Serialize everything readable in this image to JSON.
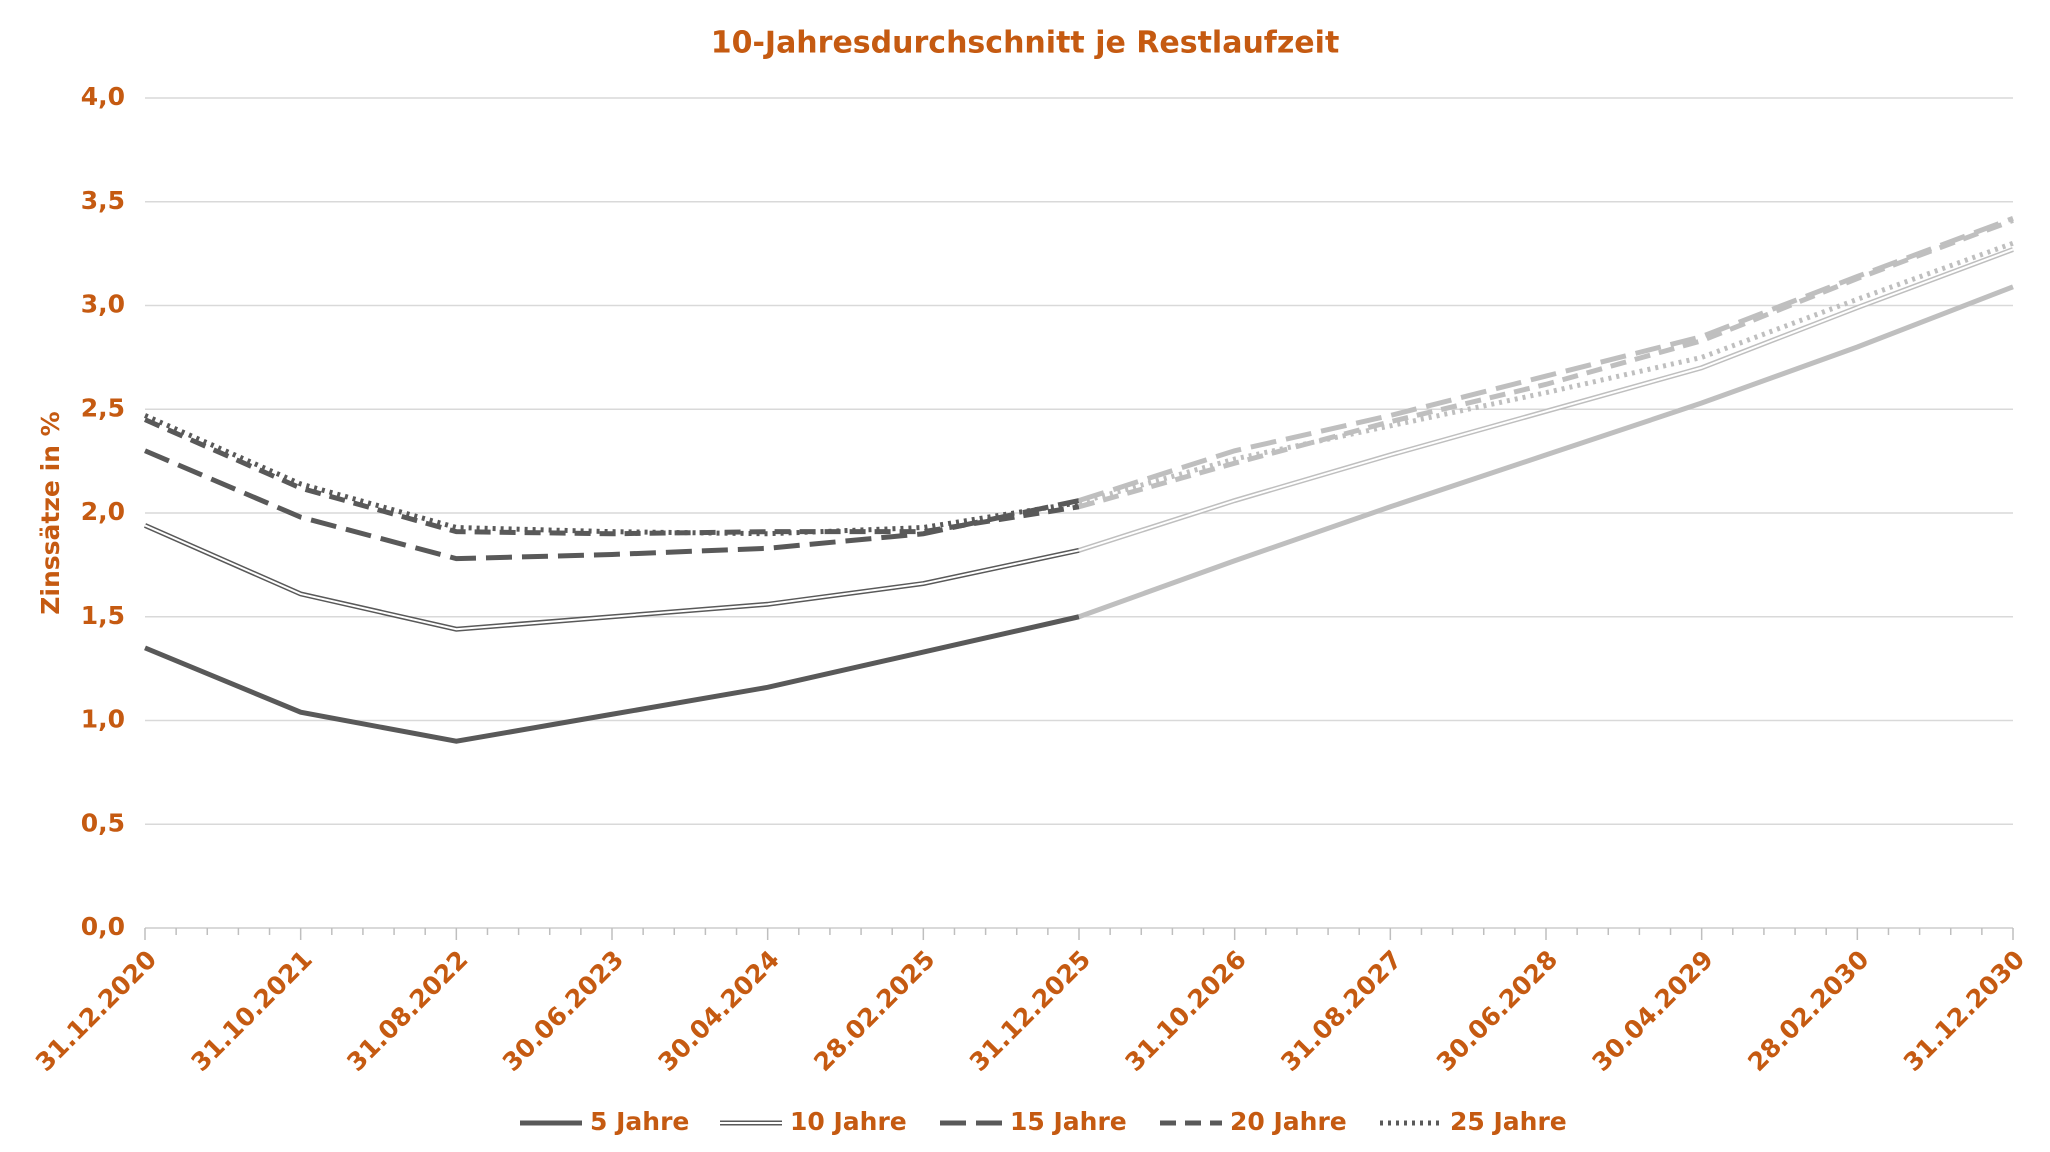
{
  "chart_data": {
    "type": "line",
    "title": "10-Jahresdurchschnitt je Restlaufzeit",
    "y_label": "Zinssätze in %",
    "categories": [
      "31.12.2020",
      "31.10.2021",
      "31.08.2022",
      "30.06.2023",
      "30.04.2024",
      "28.02.2025",
      "31.12.2025",
      "31.10.2026",
      "31.08.2027",
      "30.06.2028",
      "30.04.2029",
      "28.02.2030",
      "31.12.2030"
    ],
    "forecast_from": 6,
    "forecast_color": "#bfbfbf",
    "series": [
      {
        "name": "5 Jahre",
        "color": "#595959",
        "dash": "solid",
        "values": [
          1.35,
          1.04,
          0.9,
          1.03,
          1.16,
          1.33,
          1.5,
          1.77,
          2.03,
          2.28,
          2.53,
          2.8,
          3.09
        ]
      },
      {
        "name": "10 Jahre",
        "color": "#595959",
        "dash": "double",
        "values": [
          1.94,
          1.61,
          1.44,
          1.5,
          1.56,
          1.66,
          1.82,
          2.06,
          2.28,
          2.49,
          2.7,
          2.99,
          3.27
        ]
      },
      {
        "name": "15 Jahre",
        "color": "#595959",
        "dash": "longdash",
        "values": [
          2.3,
          1.98,
          1.78,
          1.8,
          1.83,
          1.9,
          2.06,
          2.3,
          2.47,
          2.66,
          2.85,
          3.14,
          3.42
        ]
      },
      {
        "name": "20 Jahre",
        "color": "#595959",
        "dash": "dash",
        "values": [
          2.45,
          2.12,
          1.91,
          1.9,
          1.91,
          1.91,
          2.03,
          2.24,
          2.44,
          2.62,
          2.83,
          3.13,
          3.41
        ]
      },
      {
        "name": "25 Jahre",
        "color": "#595959",
        "dash": "dot",
        "values": [
          2.47,
          2.14,
          1.93,
          1.91,
          1.9,
          1.93,
          2.05,
          2.26,
          2.42,
          2.58,
          2.75,
          3.03,
          3.3
        ]
      }
    ],
    "ylim": [
      0,
      4
    ],
    "yticks": [
      {
        "value": 0,
        "label": "0,0"
      },
      {
        "value": 0.5,
        "label": "0,5"
      },
      {
        "value": 1,
        "label": "1,0"
      },
      {
        "value": 1.5,
        "label": "1,5"
      },
      {
        "value": 2,
        "label": "2,0"
      },
      {
        "value": 2.5,
        "label": "2,5"
      },
      {
        "value": 3,
        "label": "3,0"
      },
      {
        "value": 3.5,
        "label": "3,5"
      },
      {
        "value": 4,
        "label": "4,0"
      }
    ],
    "grid": true,
    "text_color": "#c55a11",
    "legend": "bottom"
  }
}
